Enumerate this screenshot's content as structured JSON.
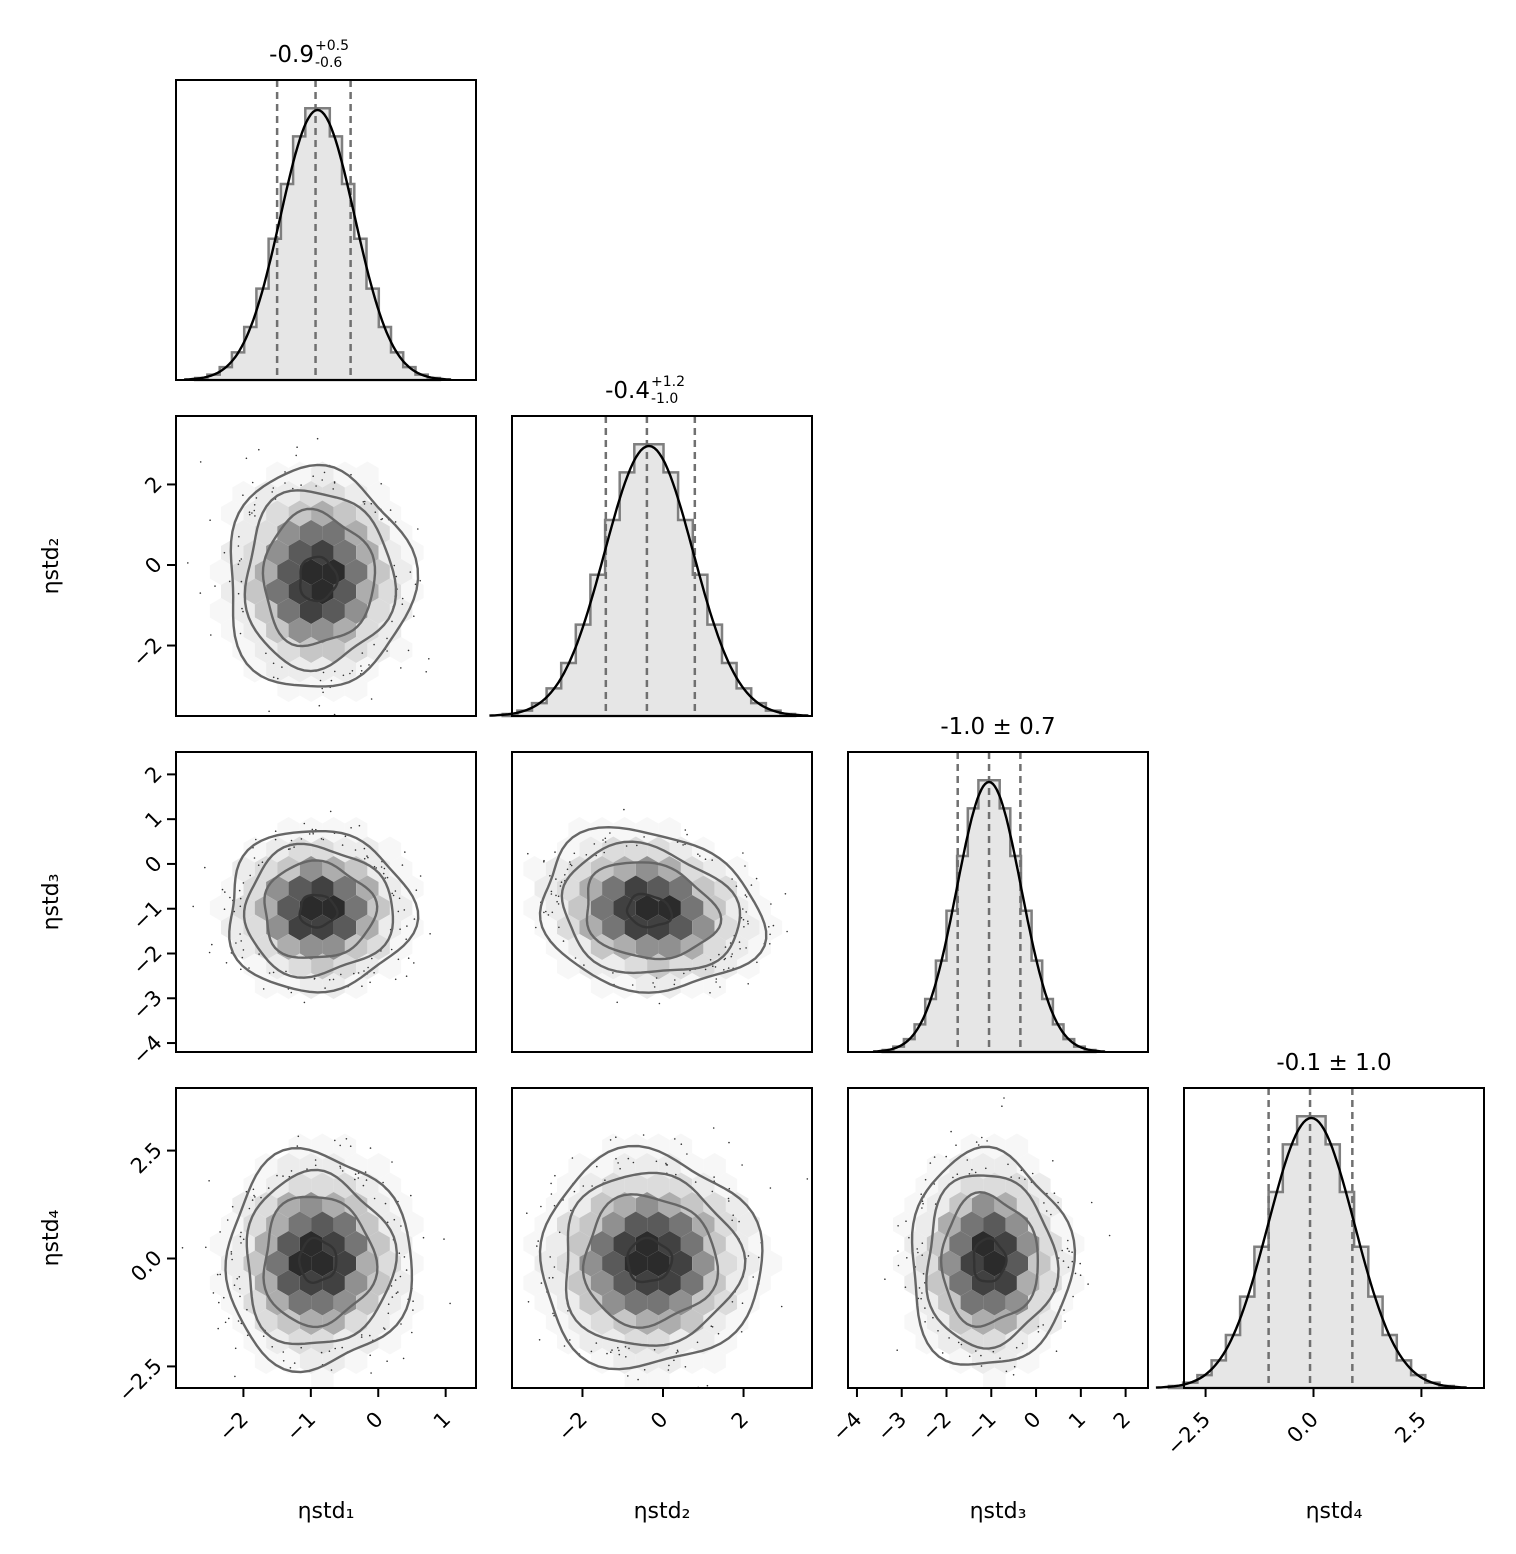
{
  "chart_data": {
    "type": "corner",
    "parameters": [
      "ηstd₁",
      "ηstd₂",
      "ηstd₃",
      "ηstd₄"
    ],
    "row_labels": [
      "",
      "ηstd₂",
      "ηstd₃",
      "ηstd₄"
    ],
    "titles": [
      {
        "main": "-0.9",
        "sup": "+0.5",
        "sub": "-0.6"
      },
      {
        "main": "-0.4",
        "sup": "+1.2",
        "sub": "-1.0"
      },
      {
        "main": "-1.0 ± 0.7",
        "sup": "",
        "sub": ""
      },
      {
        "main": "-0.1 ± 1.0",
        "sup": "",
        "sub": ""
      }
    ],
    "ranges": [
      [
        -3.0,
        1.45
      ],
      [
        -3.75,
        3.7
      ],
      [
        -4.2,
        2.5
      ],
      [
        -3.0,
        3.95
      ]
    ],
    "ticks": [
      {
        "values": [
          -2,
          -1,
          0,
          1
        ],
        "labels": [
          "−2",
          "−1",
          "0",
          "1"
        ]
      },
      {
        "values": [
          -2,
          0,
          2
        ],
        "labels": [
          "−2",
          "0",
          "2"
        ]
      },
      {
        "values": [
          -4,
          -3,
          -2,
          -1,
          0,
          1,
          2
        ],
        "labels": [
          "−4",
          "−3",
          "−2",
          "−1",
          "0",
          "1",
          "2"
        ]
      },
      {
        "values": [
          -2.5,
          0.0,
          2.5
        ],
        "labels": [
          "−2.5",
          "0.0",
          "2.5"
        ]
      }
    ],
    "marginals": [
      {
        "mean": -0.9,
        "sd": 0.55,
        "quantiles": [
          -1.5,
          -0.93,
          -0.41
        ]
      },
      {
        "mean": -0.35,
        "sd": 1.1,
        "quantiles": [
          -1.42,
          -0.4,
          0.79
        ]
      },
      {
        "mean": -1.05,
        "sd": 0.72,
        "quantiles": [
          -1.75,
          -1.05,
          -0.35
        ]
      },
      {
        "mean": -0.05,
        "sd": 1.0,
        "quantiles": [
          -1.04,
          -0.08,
          0.9
        ]
      }
    ],
    "pairs": [
      {
        "x": 0,
        "y": 1,
        "rho": 0.0
      },
      {
        "x": 0,
        "y": 2,
        "rho": 0.0
      },
      {
        "x": 1,
        "y": 2,
        "rho": -0.15
      },
      {
        "x": 0,
        "y": 3,
        "rho": 0.0
      },
      {
        "x": 1,
        "y": 3,
        "rho": 0.0
      },
      {
        "x": 2,
        "y": 3,
        "rho": 0.0
      }
    ],
    "contour_levels_sigma": [
      0.5,
      1.5,
      2.0,
      2.5
    ],
    "colors": {
      "hist_fill": "#e6e6e6",
      "hist_edge": "#7f7f7f",
      "kde": "#000000",
      "quantile_line": "#707070",
      "contour": "#666666",
      "hexbin_dark": "#2b2b2b"
    },
    "grid": false,
    "legend": "none"
  }
}
